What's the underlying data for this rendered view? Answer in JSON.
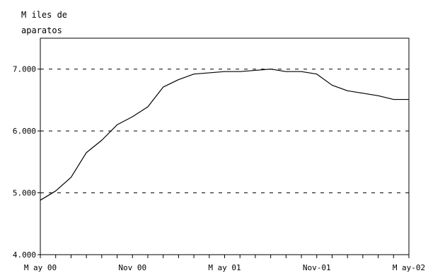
{
  "chart_data": {
    "type": "line",
    "ylabel": "M iles de\naparatos",
    "xlabel": "",
    "ylim": [
      4000,
      7500
    ],
    "yticks": [
      4000,
      5000,
      6000,
      7000
    ],
    "ytick_labels": [
      "4.000",
      "5.000",
      "6.000",
      "7.000"
    ],
    "grid": "horizontal-dashed",
    "x_start_month": "2000-05",
    "x_end_month": "2002-05",
    "xtick_labels": [
      {
        "month_index": 0,
        "label": "M ay 00"
      },
      {
        "month_index": 6,
        "label": "Nov 00"
      },
      {
        "month_index": 12,
        "label": "M ay 01"
      },
      {
        "month_index": 18,
        "label": "Nov-01"
      },
      {
        "month_index": 24,
        "label": "M ay-02"
      }
    ],
    "series": [
      {
        "values": [
          {
            "x": "2000-05",
            "y": 4880
          },
          {
            "x": "2000-06",
            "y": 5030
          },
          {
            "x": "2000-07",
            "y": 5250
          },
          {
            "x": "2000-08",
            "y": 5650
          },
          {
            "x": "2000-09",
            "y": 5850
          },
          {
            "x": "2000-10",
            "y": 6100
          },
          {
            "x": "2000-11",
            "y": 6230
          },
          {
            "x": "2000-12",
            "y": 6390
          },
          {
            "x": "2001-01",
            "y": 6710
          },
          {
            "x": "2001-02",
            "y": 6830
          },
          {
            "x": "2001-03",
            "y": 6920
          },
          {
            "x": "2001-04",
            "y": 6940
          },
          {
            "x": "2001-05",
            "y": 6960
          },
          {
            "x": "2001-06",
            "y": 6960
          },
          {
            "x": "2001-07",
            "y": 6980
          },
          {
            "x": "2001-08",
            "y": 7000
          },
          {
            "x": "2001-09",
            "y": 6960
          },
          {
            "x": "2001-10",
            "y": 6960
          },
          {
            "x": "2001-11",
            "y": 6920
          },
          {
            "x": "2001-12",
            "y": 6740
          },
          {
            "x": "2002-01",
            "y": 6650
          },
          {
            "x": "2002-02",
            "y": 6610
          },
          {
            "x": "2002-03",
            "y": 6570
          },
          {
            "x": "2002-04",
            "y": 6510
          },
          {
            "x": "2002-05",
            "y": 6510
          }
        ]
      }
    ]
  }
}
